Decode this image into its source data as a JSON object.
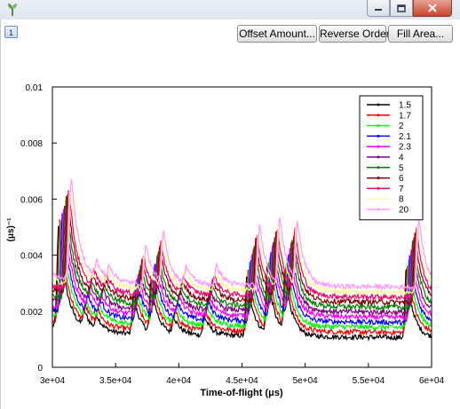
{
  "window": {
    "buttons": [
      "minimize",
      "maximize",
      "close"
    ]
  },
  "toolbar": {
    "tab_label": "1",
    "offset_label": "Offset Amount...",
    "reverse_label": "Reverse Order",
    "fill_label": "Fill Area..."
  },
  "icons": {
    "app": "plant-icon",
    "minimize": "minimize-icon",
    "maximize": "maximize-icon",
    "close": "close-icon"
  },
  "chart_data": {
    "type": "line",
    "xlabel": "Time-of-flight (μs)",
    "ylabel": "(μs)⁻¹",
    "xlim": [
      30000,
      60000
    ],
    "ylim": [
      0,
      0.01
    ],
    "x_ticks": [
      "3e+04",
      "3.5e+04",
      "4e+04",
      "4.5e+04",
      "5e+04",
      "5.5e+04",
      "6e+04"
    ],
    "y_ticks": [
      "0",
      "0.002",
      "0.004",
      "0.006",
      "0.008",
      "0.01"
    ],
    "grid": false,
    "legend_position": "top-right",
    "peaks_x": [
      30500,
      32500,
      33500,
      36400,
      37800,
      39600,
      42000,
      45400,
      47000,
      48400,
      58000
    ],
    "series": [
      {
        "name": "1.5",
        "color": "#000000",
        "offset": 0.0,
        "peak_shift": 0
      },
      {
        "name": "1.7",
        "color": "#ff0000",
        "offset": 0.00018,
        "peak_shift": 100
      },
      {
        "name": "2",
        "color": "#00ff00",
        "offset": 0.00036,
        "peak_shift": 200
      },
      {
        "name": "2.1",
        "color": "#0000ff",
        "offset": 0.00054,
        "peak_shift": 300
      },
      {
        "name": "2.3",
        "color": "#ff00ff",
        "offset": 0.00072,
        "peak_shift": 400
      },
      {
        "name": "4",
        "color": "#800080",
        "offset": 0.0009,
        "peak_shift": 500
      },
      {
        "name": "5",
        "color": "#008000",
        "offset": 0.00108,
        "peak_shift": 600
      },
      {
        "name": "6",
        "color": "#800000",
        "offset": 0.00126,
        "peak_shift": 700
      },
      {
        "name": "7",
        "color": "#ff0066",
        "offset": 0.00144,
        "peak_shift": 800
      },
      {
        "name": "8",
        "color": "#ffff99",
        "offset": 0.00162,
        "peak_shift": 900
      },
      {
        "name": "20",
        "color": "#ff99ff",
        "offset": 0.0018,
        "peak_shift": 1000
      }
    ]
  }
}
